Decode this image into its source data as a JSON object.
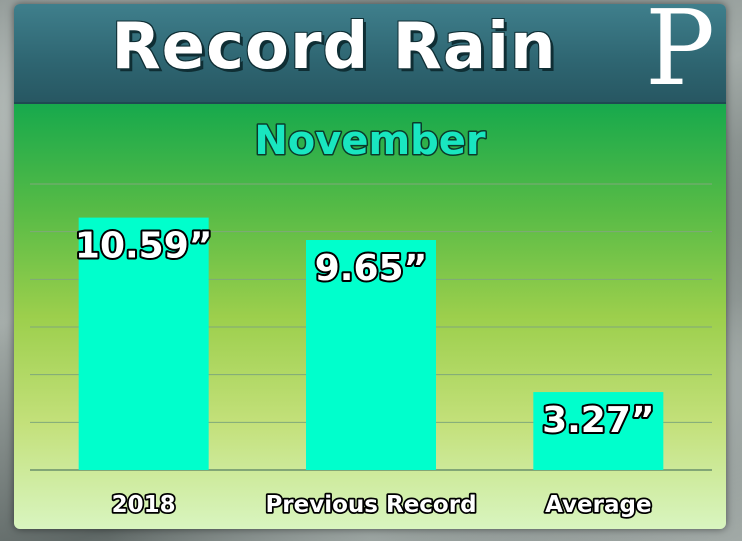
{
  "header": {
    "title": "Record Rain",
    "logo": "P"
  },
  "colors": {
    "bar": "#00ffcc",
    "subtitle": "#19e6c0",
    "header": "#2e6571"
  },
  "chart_data": {
    "type": "bar",
    "title": "Record Rain",
    "subtitle": "November",
    "categories": [
      "2018",
      "Previous Record",
      "Average"
    ],
    "values": [
      10.59,
      9.65,
      3.27
    ],
    "value_labels": [
      "10.59”",
      "9.65”",
      "3.27”"
    ],
    "xlabel": "",
    "ylabel": "",
    "ylim": [
      0,
      12
    ],
    "grid": true,
    "legend": "none"
  }
}
